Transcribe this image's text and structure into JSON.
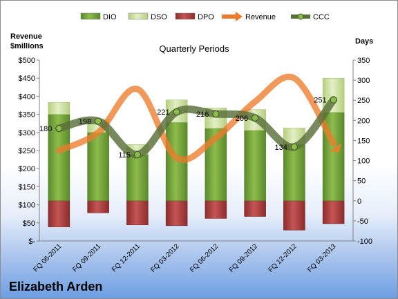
{
  "chart_data": {
    "type": "bar",
    "title": "Quarterly Periods",
    "left_axis_label": "Revenue $millions",
    "right_axis_label": "Days",
    "left_ylim": [
      0,
      500
    ],
    "left_ticks": [
      "$-",
      "$50",
      "$100",
      "$150",
      "$200",
      "$250",
      "$300",
      "$350",
      "$400",
      "$450",
      "$500"
    ],
    "right_ylim": [
      -100,
      350
    ],
    "right_ticks": [
      "-100",
      "-50",
      "0",
      "50",
      "100",
      "150",
      "200",
      "250",
      "300",
      "350"
    ],
    "categories": [
      "FQ 06-2011",
      "FQ 09-2011",
      "FQ 12-2011",
      "FQ 03-2012",
      "FQ 06-2012",
      "FQ 09-2012",
      "FQ 12-2012",
      "FQ 03-2013"
    ],
    "legend": [
      "DIO",
      "DSO",
      "DPO",
      "Revenue",
      "CCC"
    ],
    "legend_position": "top",
    "series": [
      {
        "name": "DIO",
        "axis": "right",
        "color": "#6a9a32",
        "values": [
          215,
          170,
          115,
          195,
          180,
          175,
          140,
          220
        ]
      },
      {
        "name": "DSO",
        "axis": "right",
        "color": "#c8dd96",
        "values": [
          30,
          33,
          25,
          56,
          51,
          52,
          41,
          85
        ]
      },
      {
        "name": "DPO",
        "axis": "right",
        "color": "#a33a3a",
        "values": [
          -65,
          -30,
          -60,
          -62,
          -44,
          -39,
          -73,
          -57
        ]
      },
      {
        "name": "Revenue",
        "axis": "left",
        "color": "#ec7c2c",
        "values": [
          250,
          300,
          420,
          230,
          285,
          385,
          450,
          270
        ]
      },
      {
        "name": "CCC",
        "axis": "right",
        "color": "#5a6f3a",
        "values": [
          180,
          198,
          115,
          221,
          216,
          206,
          134,
          251
        ]
      }
    ],
    "ccc_labels": [
      "180",
      "198",
      "115",
      "221",
      "216",
      "206",
      "134",
      "251"
    ],
    "grid": false
  },
  "footer": {
    "company": "Elizabeth Arden"
  }
}
